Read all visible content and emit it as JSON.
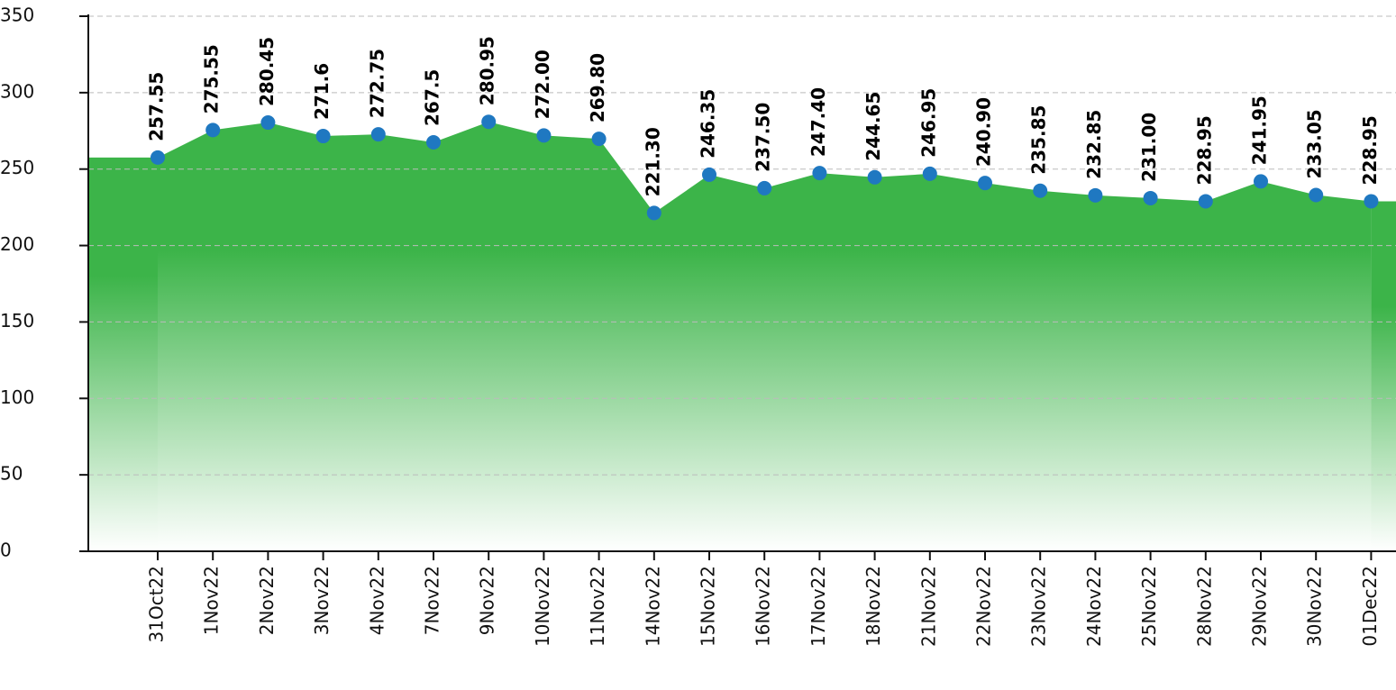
{
  "chart_data": {
    "type": "area",
    "categories": [
      "31Oct22",
      "1Nov22",
      "2Nov22",
      "3Nov22",
      "4Nov22",
      "7Nov22",
      "9Nov22",
      "10Nov22",
      "11Nov22",
      "14Nov22",
      "15Nov22",
      "16Nov22",
      "17Nov22",
      "18Nov22",
      "21Nov22",
      "22Nov22",
      "23Nov22",
      "24Nov22",
      "25Nov22",
      "28Nov22",
      "29Nov22",
      "30Nov22",
      "01Dec22"
    ],
    "values": [
      257.55,
      275.55,
      280.45,
      271.6,
      272.75,
      267.5,
      280.95,
      272.0,
      269.8,
      221.3,
      246.35,
      237.5,
      247.4,
      244.65,
      246.95,
      240.9,
      235.85,
      232.85,
      231.0,
      228.95,
      241.95,
      233.05,
      228.95
    ],
    "value_labels": [
      "257.55",
      "275.55",
      "280.45",
      "271.6",
      "272.75",
      "267.5",
      "280.95",
      "272.00",
      "269.80",
      "221.30",
      "246.35",
      "237.50",
      "247.40",
      "244.65",
      "246.95",
      "240.90",
      "235.85",
      "232.85",
      "231.00",
      "228.95",
      "241.95",
      "233.05",
      "228.95"
    ],
    "color": "#3cb449",
    "marker_color": "#1f78c1",
    "ylim": [
      0,
      350
    ],
    "yticks": [
      0,
      50,
      100,
      150,
      200,
      250,
      300,
      350
    ],
    "grid": true
  }
}
